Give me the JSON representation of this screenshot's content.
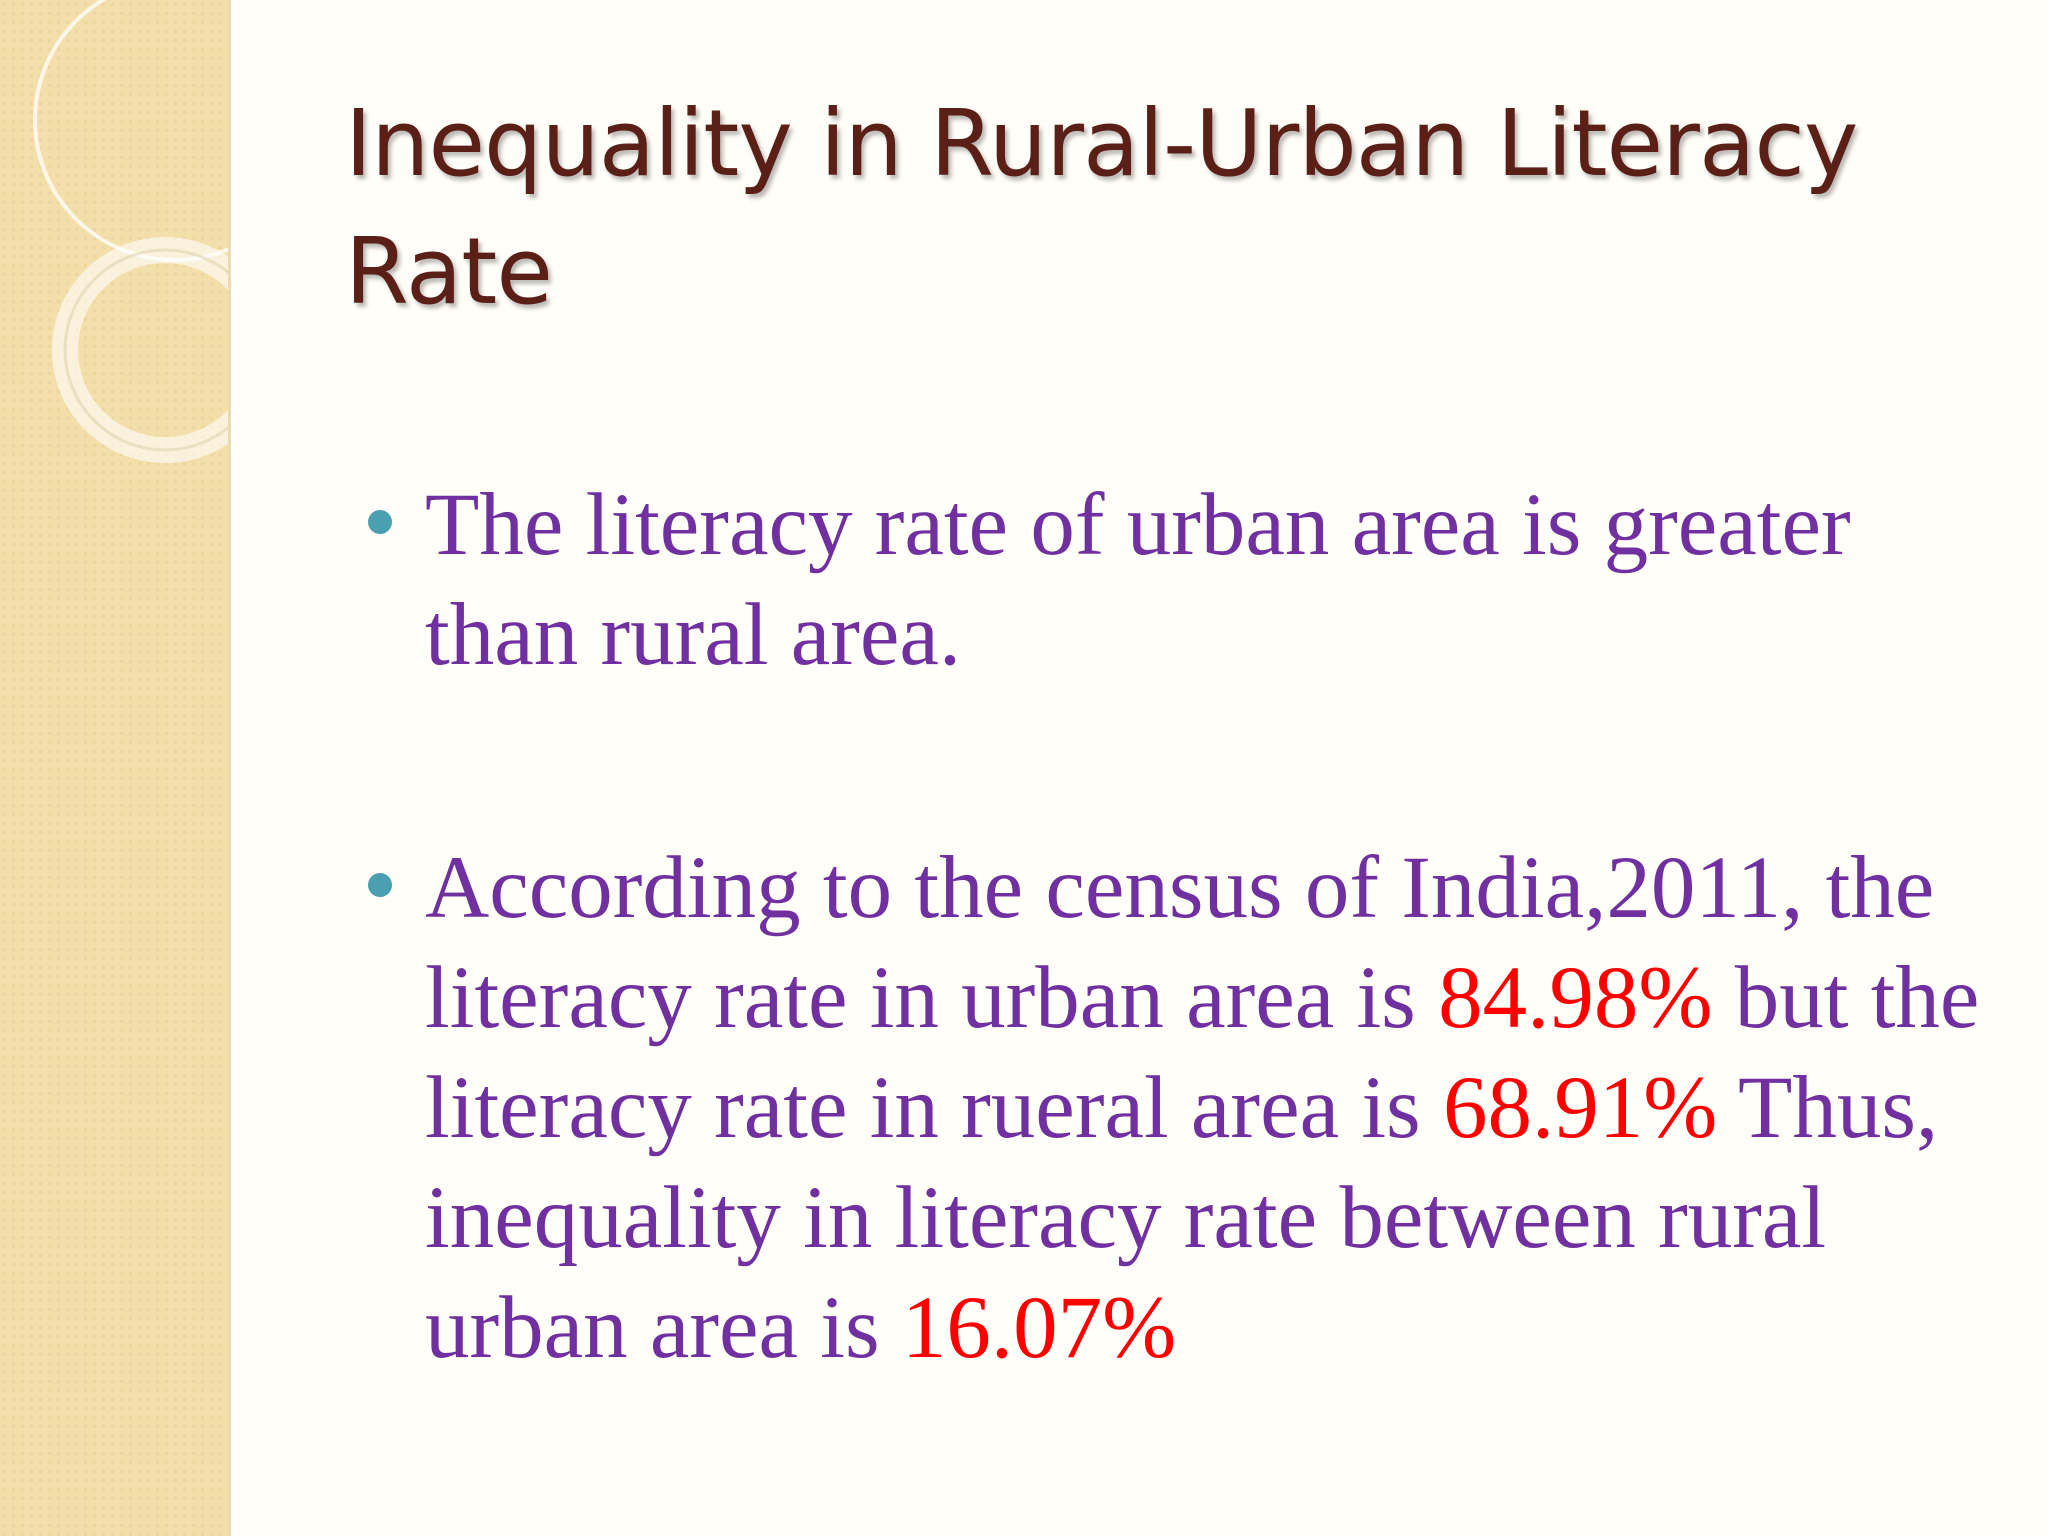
{
  "slide": {
    "title": "Inequality in Rural-Urban Literacy Rate",
    "bullets": [
      {
        "text": "The literacy rate of urban area is greater than rural area."
      },
      {
        "part1": "According to the census of India,2011, the literacy rate in urban area is ",
        "urban_rate": "84.98%",
        "part2": " but the literacy rate in rueral area is ",
        "rural_rate": "68.91%",
        "part3": " Thus, inequality in literacy rate between rural urban area is ",
        "gap": "16.07%"
      }
    ]
  },
  "colors": {
    "title": "#5a1f16",
    "body_text": "#7030a0",
    "highlight": "#ff0000",
    "bullet": "#4aa0b0",
    "side_band": "#f3dfaa"
  }
}
